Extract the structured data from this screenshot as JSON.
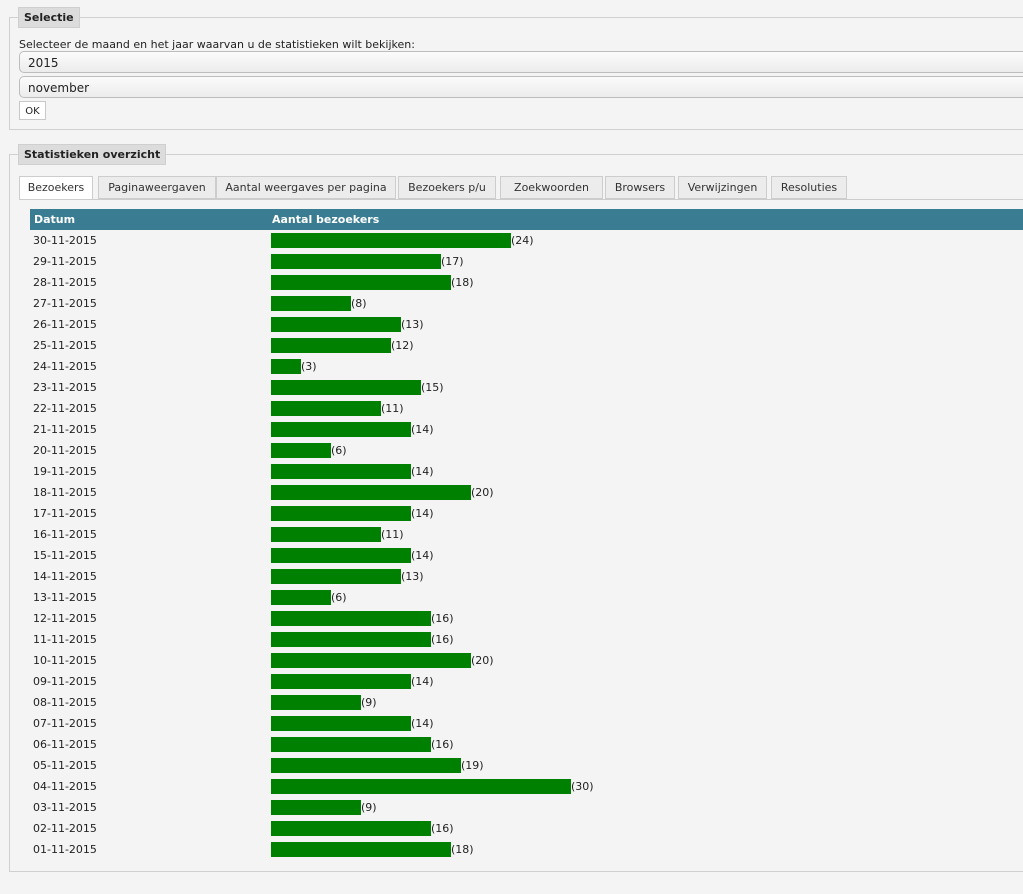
{
  "selection": {
    "legend": "Selectie",
    "prompt": "Selecteer de maand en het jaar waarvan u de statistieken wilt bekijken:",
    "year": "2015",
    "month": "november",
    "ok_label": "OK"
  },
  "overview": {
    "legend": "Statistieken overzicht",
    "tabs": [
      "Bezoekers",
      "Paginaweergaven",
      "Aantal weergaves per pagina",
      "Bezoekers p/u",
      "Zoekwoorden",
      "Browsers",
      "Verwijzingen",
      "Resoluties"
    ],
    "active_tab": "Bezoekers"
  },
  "colors": {
    "header_bg": "#3a7d93",
    "bar": "#008000"
  },
  "chart_data": {
    "type": "bar",
    "orientation": "horizontal",
    "columns": [
      "Datum",
      "Aantal bezoekers"
    ],
    "categories": [
      "30-11-2015",
      "29-11-2015",
      "28-11-2015",
      "27-11-2015",
      "26-11-2015",
      "25-11-2015",
      "24-11-2015",
      "23-11-2015",
      "22-11-2015",
      "21-11-2015",
      "20-11-2015",
      "19-11-2015",
      "18-11-2015",
      "17-11-2015",
      "16-11-2015",
      "15-11-2015",
      "14-11-2015",
      "13-11-2015",
      "12-11-2015",
      "11-11-2015",
      "10-11-2015",
      "09-11-2015",
      "08-11-2015",
      "07-11-2015",
      "06-11-2015",
      "05-11-2015",
      "04-11-2015",
      "03-11-2015",
      "02-11-2015",
      "01-11-2015"
    ],
    "values": [
      24,
      17,
      18,
      8,
      13,
      12,
      3,
      15,
      11,
      14,
      6,
      14,
      20,
      14,
      11,
      14,
      13,
      6,
      16,
      16,
      20,
      14,
      9,
      14,
      16,
      19,
      30,
      9,
      16,
      18
    ]
  }
}
